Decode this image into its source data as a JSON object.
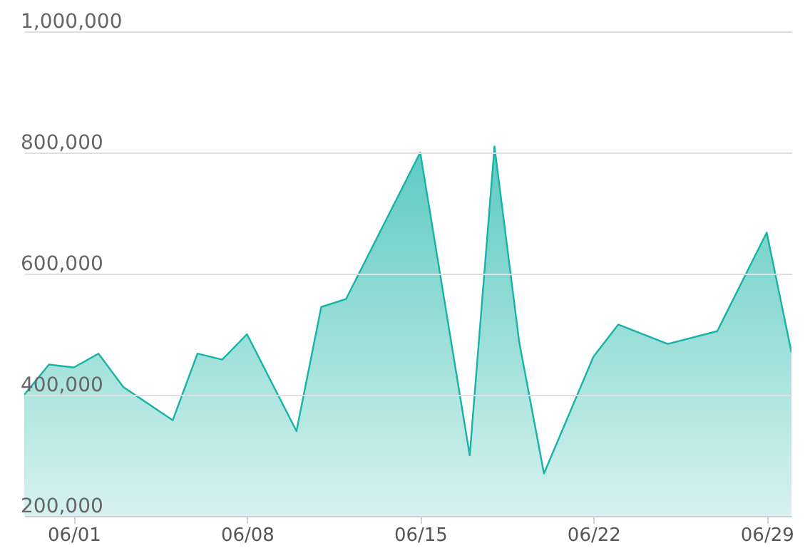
{
  "chart_data": {
    "type": "area",
    "x": [
      "--05-30",
      "--05-31",
      "--06-01",
      "--06-02",
      "--06-03",
      "--06-05",
      "--06-06",
      "--06-07",
      "--06-08",
      "--06-10",
      "--06-11",
      "--06-12",
      "--06-15",
      "--06-17",
      "--06-18",
      "--06-19",
      "--06-20",
      "--06-22",
      "--06-23",
      "--06-25",
      "--06-27",
      "--06-29",
      "--06-30"
    ],
    "series": [
      {
        "color": "#17b3a7",
        "values": [
          400000,
          450000,
          445000,
          468000,
          413000,
          358000,
          468000,
          458000,
          500000,
          340000,
          545000,
          558000,
          800000,
          300000,
          810000,
          487000,
          270000,
          463000,
          516000,
          484000,
          505000,
          668000,
          470000
        ]
      }
    ],
    "xlim": [
      "--05-30",
      "--06-30"
    ],
    "xticks": [
      {
        "value": "--06-01",
        "label": "06/01"
      },
      {
        "value": "--06-08",
        "label": "06/08"
      },
      {
        "value": "--06-15",
        "label": "06/15"
      },
      {
        "value": "--06-22",
        "label": "06/22"
      },
      {
        "value": "--06-29",
        "label": "06/29"
      }
    ],
    "ylim": [
      200000,
      1000000
    ],
    "yticks": [
      {
        "value": 200000,
        "label": "200,000"
      },
      {
        "value": 400000,
        "label": "400,000"
      },
      {
        "value": 600000,
        "label": "600,000"
      },
      {
        "value": 800000,
        "label": "800,000"
      },
      {
        "value": 1000000,
        "label": "1,000,000"
      }
    ],
    "grid": "y"
  }
}
